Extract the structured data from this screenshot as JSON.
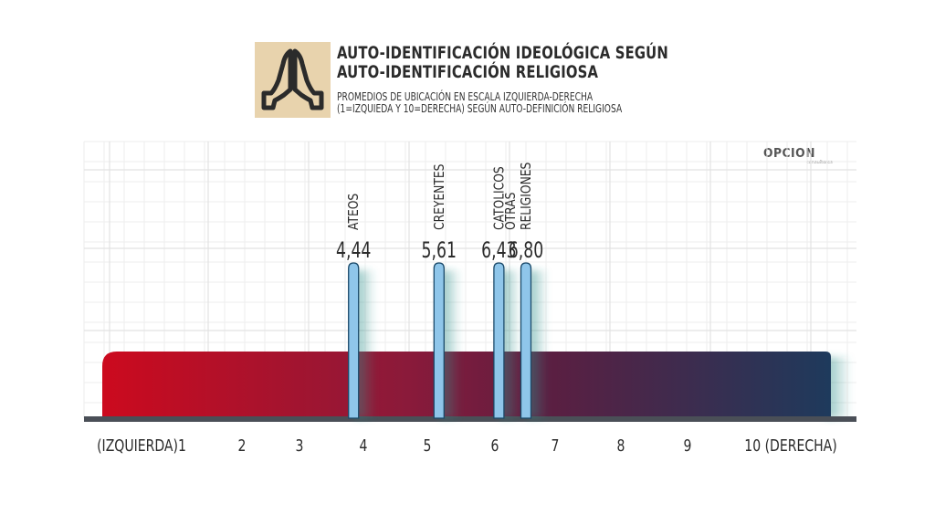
{
  "header": {
    "title_lines": [
      "AUTO-IDENTIFICACIÓN IDEOLÓGICA SEGÚN",
      "AUTO-IDENTIFICACIÓN RELIGIOSA"
    ],
    "subtitle_lines": [
      "PROMEDIOS DE UBICACIÓN EN ESCALA IZQUIERDA-DERECHA",
      "(1=IZQUIEDA Y 10=DERECHA) SEGÚN AUTO-DEFINICIÓN RELIGIOSA"
    ],
    "icon": "praying-hands-icon",
    "icon_bg_color": "#e8d3ad"
  },
  "brand": {
    "name": "OPCION",
    "tagline": "consultores"
  },
  "chart_data": {
    "type": "bar",
    "scale_range": [
      1,
      10
    ],
    "tick_labels": [
      {
        "value": 1,
        "label": "(IZQUIERDA)1"
      },
      {
        "value": 2,
        "label": "2"
      },
      {
        "value": 3,
        "label": "3"
      },
      {
        "value": 4,
        "label": "4"
      },
      {
        "value": 5,
        "label": "5"
      },
      {
        "value": 6,
        "label": "6"
      },
      {
        "value": 7,
        "label": "7"
      },
      {
        "value": 8,
        "label": "8"
      },
      {
        "value": 9,
        "label": "9"
      },
      {
        "value": 10,
        "label": "10 (DERECHA)"
      }
    ],
    "categories": [
      "ATEOS",
      "CREYENTES",
      "CATOLICOS",
      "OTRAS RELIGIONES"
    ],
    "category_label_lines": [
      [
        "ATEOS"
      ],
      [
        "CREYENTES"
      ],
      [
        "CATOLICOS"
      ],
      [
        "OTRAS",
        "RELIGIONES"
      ]
    ],
    "values": [
      4.44,
      5.61,
      6.43,
      6.8
    ],
    "value_labels": [
      "4,44",
      "5,61",
      "6,43",
      "6,80"
    ],
    "gradient_colors": [
      "#cc0a1e",
      "#8a1a3a",
      "#5a1f42",
      "#1e3a5c"
    ],
    "marker_color": "#8fc6ea",
    "grid": true
  }
}
